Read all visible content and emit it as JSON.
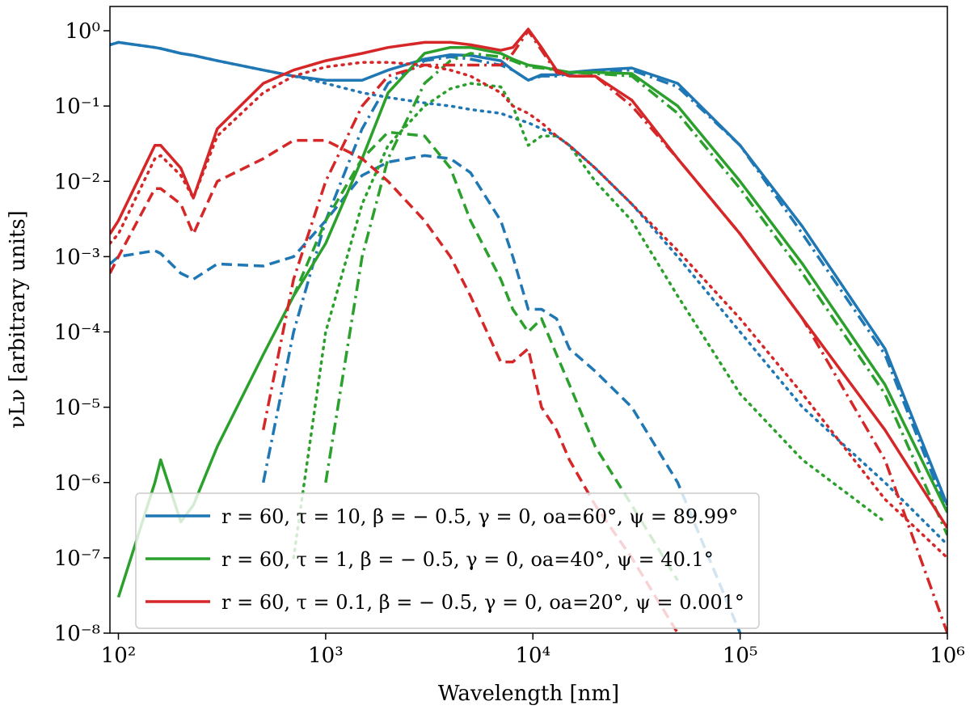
{
  "chart_data": {
    "type": "line",
    "xlabel": "Wavelength [nm]",
    "ylabel": "νLν [arbitrary units]",
    "xscale": "log",
    "yscale": "log",
    "xlim": [
      91,
      1000000
    ],
    "ylim": [
      1e-08,
      2.1
    ],
    "xticks": [
      {
        "value": 100,
        "label": "10²"
      },
      {
        "value": 1000,
        "label": "10³"
      },
      {
        "value": 10000,
        "label": "10⁴"
      },
      {
        "value": 100000,
        "label": "10⁵"
      },
      {
        "value": 1000000,
        "label": "10⁶"
      }
    ],
    "yticks": [
      {
        "value": 1e-08,
        "label": "10⁻⁸"
      },
      {
        "value": 1e-07,
        "label": "10⁻⁷"
      },
      {
        "value": 1e-06,
        "label": "10⁻⁶"
      },
      {
        "value": 1e-05,
        "label": "10⁻⁵"
      },
      {
        "value": 0.0001,
        "label": "10⁻⁴"
      },
      {
        "value": 0.001,
        "label": "10⁻³"
      },
      {
        "value": 0.01,
        "label": "10⁻²"
      },
      {
        "value": 0.1,
        "label": "10⁻¹"
      },
      {
        "value": 1,
        "label": "10⁰"
      }
    ],
    "legend": "lower left",
    "x": [
      91,
      100,
      150,
      160,
      200,
      230,
      300,
      500,
      700,
      1000,
      1500,
      2000,
      3000,
      4000,
      5000,
      7000,
      8000,
      9500,
      11000,
      13000,
      15000,
      20000,
      30000,
      50000,
      100000,
      200000,
      500000,
      1000000
    ],
    "series": [
      {
        "name": "r = 60, τ = 10, β = − 0.5, γ = 0, oa=60°, ψ = 89.99°",
        "color": "#1f77b4",
        "dash": "solid",
        "values": [
          0.65,
          0.7,
          0.6,
          0.58,
          0.5,
          0.47,
          0.4,
          0.3,
          0.25,
          0.22,
          0.22,
          0.3,
          0.42,
          0.48,
          0.47,
          0.4,
          0.3,
          0.22,
          0.26,
          0.26,
          0.28,
          0.3,
          0.32,
          0.2,
          0.03,
          0.0025,
          6e-05,
          5e-07
        ]
      },
      {
        "color": "#1f77b4",
        "dash": "dotted",
        "values": [
          0.65,
          0.7,
          0.6,
          0.58,
          0.5,
          0.47,
          0.4,
          0.3,
          0.25,
          0.2,
          0.15,
          0.13,
          0.11,
          0.1,
          0.09,
          0.08,
          0.07,
          0.06,
          0.05,
          0.04,
          0.03,
          0.015,
          0.005,
          0.001,
          0.0001,
          1e-05,
          1e-06,
          1.5e-07
        ]
      },
      {
        "color": "#1f77b4",
        "dash": "dashed",
        "values": [
          0.0008,
          0.001,
          0.0012,
          0.0011,
          0.0006,
          0.0005,
          0.0008,
          0.00075,
          0.001,
          0.003,
          0.012,
          0.018,
          0.022,
          0.02,
          0.013,
          0.003,
          0.001,
          0.0002,
          0.0002,
          0.00015,
          6e-05,
          3e-05,
          1e-05,
          1e-06,
          1e-08,
          null,
          null,
          null
        ]
      },
      {
        "color": "#1f77b4",
        "dash": "dashdot",
        "values": [
          null,
          null,
          null,
          null,
          null,
          null,
          null,
          1e-06,
          0.0001,
          0.003,
          0.05,
          0.2,
          0.4,
          0.45,
          0.42,
          0.35,
          0.3,
          0.22,
          0.25,
          0.25,
          0.27,
          0.29,
          0.3,
          0.18,
          0.03,
          0.002,
          5e-05,
          4e-07
        ]
      },
      {
        "name": "r = 60, τ = 1, β = − 0.5, γ = 0, oa=40°, ψ = 40.1°",
        "color": "#2ca02c",
        "dash": "solid",
        "values": [
          null,
          3e-08,
          1e-06,
          2e-06,
          3e-07,
          5e-07,
          3e-06,
          5e-05,
          0.0003,
          0.0015,
          0.02,
          0.15,
          0.5,
          0.6,
          0.6,
          0.5,
          0.42,
          0.35,
          0.33,
          0.3,
          0.28,
          0.28,
          0.27,
          0.1,
          0.01,
          0.0008,
          2e-05,
          4e-07
        ]
      },
      {
        "color": "#2ca02c",
        "dash": "dotted",
        "values": [
          null,
          null,
          null,
          null,
          null,
          null,
          null,
          null,
          1e-07,
          0.0001,
          0.005,
          0.03,
          0.1,
          0.17,
          0.2,
          0.18,
          0.1,
          0.03,
          0.04,
          0.04,
          0.03,
          0.01,
          0.003,
          0.0003,
          1.5e-05,
          2e-06,
          3e-07,
          null
        ]
      },
      {
        "color": "#2ca02c",
        "dash": "dashed",
        "values": [
          null,
          null,
          null,
          null,
          null,
          null,
          null,
          null,
          0.0003,
          0.003,
          0.02,
          0.045,
          0.04,
          0.015,
          0.003,
          0.0005,
          0.0002,
          0.0001,
          0.00015,
          5e-05,
          2e-05,
          3e-06,
          5e-07,
          5e-08,
          null,
          null,
          null,
          null
        ]
      },
      {
        "color": "#2ca02c",
        "dash": "dashdot",
        "values": [
          null,
          null,
          null,
          null,
          null,
          null,
          null,
          null,
          null,
          1e-06,
          0.001,
          0.02,
          0.2,
          0.4,
          0.5,
          0.45,
          0.4,
          0.33,
          0.32,
          0.3,
          0.28,
          0.27,
          0.25,
          0.08,
          0.008,
          0.0006,
          1.5e-05,
          2e-07
        ]
      },
      {
        "name": "r = 60, τ = 0.1, β = − 0.5, γ = 0, oa=20°, ψ = 0.001°",
        "color": "#d62728",
        "dash": "solid",
        "values": [
          0.002,
          0.003,
          0.03,
          0.03,
          0.015,
          0.006,
          0.05,
          0.2,
          0.3,
          0.4,
          0.5,
          0.6,
          0.7,
          0.7,
          0.65,
          0.55,
          0.6,
          1.05,
          0.6,
          0.3,
          0.25,
          0.25,
          0.12,
          0.02,
          0.002,
          0.00015,
          5e-06,
          2.5e-07
        ]
      },
      {
        "color": "#d62728",
        "dash": "dotted",
        "values": [
          0.0015,
          0.002,
          0.02,
          0.022,
          0.012,
          0.006,
          0.04,
          0.15,
          0.25,
          0.33,
          0.38,
          0.38,
          0.35,
          0.3,
          0.25,
          0.15,
          0.1,
          0.08,
          0.06,
          0.04,
          0.03,
          0.015,
          0.005,
          0.0012,
          0.00015,
          1.5e-05,
          6e-07,
          1e-07
        ]
      },
      {
        "color": "#d62728",
        "dash": "dashed",
        "values": [
          0.0006,
          0.001,
          0.008,
          0.008,
          0.005,
          0.002,
          0.01,
          0.02,
          0.035,
          0.035,
          0.02,
          0.01,
          0.003,
          0.001,
          0.0003,
          4e-05,
          4e-05,
          6e-05,
          1e-05,
          5e-06,
          2e-06,
          5e-07,
          1e-07,
          1e-08,
          null,
          null,
          null,
          null
        ]
      },
      {
        "color": "#d62728",
        "dash": "dashdot",
        "values": [
          null,
          null,
          null,
          null,
          null,
          null,
          null,
          5e-06,
          0.0005,
          0.01,
          0.1,
          0.25,
          0.35,
          0.35,
          0.35,
          0.35,
          0.5,
          1.0,
          0.55,
          0.28,
          0.25,
          0.25,
          0.1,
          0.02,
          0.002,
          0.00015,
          2e-06,
          1e-08
        ]
      }
    ]
  }
}
